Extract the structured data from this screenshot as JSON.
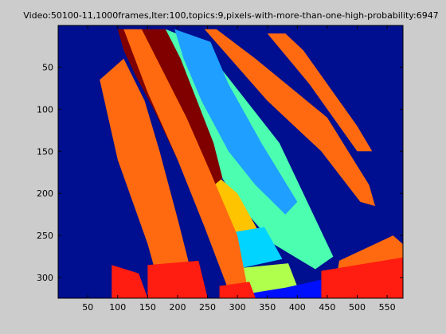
{
  "chart_data": {
    "type": "heatmap",
    "title": "Video:50100-11,1000frames,Iter:100,topics:9,pixels-with-more-than-one-high-probability:6947",
    "xlabel": "",
    "ylabel": "",
    "xlim": [
      0.5,
      576.5
    ],
    "ylim": [
      0.5,
      324.5
    ],
    "y_reversed": true,
    "grid": false,
    "legend": "none",
    "xticks": [
      50,
      100,
      150,
      200,
      250,
      300,
      350,
      400,
      450,
      500,
      550
    ],
    "yticks": [
      50,
      100,
      150,
      200,
      250,
      300
    ],
    "colors": {
      "background": "#000f8f",
      "maroon": "#800000",
      "aquamarine": "#4cffb0",
      "sky": "#1f9fff",
      "orange": "#ff6a10",
      "red": "#ff1c10",
      "amber": "#ffc400",
      "cyan": "#00d4ff",
      "lime": "#b0ff4c",
      "blue": "#0010ff"
    },
    "regions": [
      {
        "topic": "aquamarine",
        "points": [
          [
            180,
            5
          ],
          [
            240,
            22
          ],
          [
            370,
            140
          ],
          [
            460,
            275
          ],
          [
            430,
            290
          ],
          [
            360,
            260
          ],
          [
            300,
            210
          ],
          [
            255,
            160
          ],
          [
            215,
            90
          ],
          [
            185,
            40
          ]
        ]
      },
      {
        "topic": "sky",
        "points": [
          [
            195,
            5
          ],
          [
            255,
            20
          ],
          [
            285,
            70
          ],
          [
            340,
            140
          ],
          [
            400,
            210
          ],
          [
            380,
            225
          ],
          [
            330,
            190
          ],
          [
            285,
            150
          ],
          [
            240,
            90
          ],
          [
            210,
            40
          ]
        ]
      },
      {
        "topic": "amber",
        "points": [
          [
            235,
            160
          ],
          [
            300,
            200
          ],
          [
            335,
            245
          ],
          [
            275,
            260
          ],
          [
            255,
            230
          ],
          [
            240,
            200
          ]
        ]
      },
      {
        "topic": "cyan",
        "points": [
          [
            260,
            250
          ],
          [
            345,
            240
          ],
          [
            375,
            278
          ],
          [
            285,
            292
          ]
        ]
      },
      {
        "topic": "lime",
        "points": [
          [
            285,
            290
          ],
          [
            385,
            283
          ],
          [
            405,
            320
          ],
          [
            300,
            325
          ]
        ]
      },
      {
        "topic": "blue",
        "points": [
          [
            310,
            320
          ],
          [
            380,
            312
          ],
          [
            455,
            300
          ],
          [
            470,
            324
          ],
          [
            320,
            324
          ]
        ]
      },
      {
        "topic": "maroon",
        "points": [
          [
            100,
            5
          ],
          [
            180,
            5
          ],
          [
            205,
            40
          ],
          [
            260,
            140
          ],
          [
            275,
            182
          ],
          [
            235,
            205
          ],
          [
            200,
            160
          ],
          [
            160,
            100
          ],
          [
            130,
            60
          ],
          [
            110,
            30
          ]
        ]
      },
      {
        "topic": "orange",
        "points": [
          [
            70,
            65
          ],
          [
            110,
            40
          ],
          [
            145,
            90
          ],
          [
            170,
            150
          ],
          [
            200,
            230
          ],
          [
            225,
            300
          ],
          [
            225,
            324
          ],
          [
            175,
            324
          ],
          [
            150,
            260
          ],
          [
            100,
            160
          ]
        ]
      },
      {
        "topic": "orange",
        "points": [
          [
            110,
            5
          ],
          [
            140,
            5
          ],
          [
            215,
            110
          ],
          [
            255,
            175
          ],
          [
            300,
            250
          ],
          [
            320,
            324
          ],
          [
            290,
            324
          ],
          [
            245,
            240
          ],
          [
            200,
            160
          ],
          [
            150,
            80
          ]
        ]
      },
      {
        "topic": "orange",
        "points": [
          [
            245,
            5
          ],
          [
            265,
            5
          ],
          [
            330,
            40
          ],
          [
            450,
            110
          ],
          [
            520,
            190
          ],
          [
            530,
            215
          ],
          [
            505,
            210
          ],
          [
            440,
            150
          ],
          [
            350,
            90
          ]
        ]
      },
      {
        "topic": "orange",
        "points": [
          [
            350,
            10
          ],
          [
            380,
            10
          ],
          [
            410,
            30
          ],
          [
            500,
            120
          ],
          [
            525,
            150
          ],
          [
            500,
            150
          ],
          [
            420,
            70
          ]
        ]
      },
      {
        "topic": "orange",
        "points": [
          [
            470,
            280
          ],
          [
            560,
            250
          ],
          [
            576,
            260
          ],
          [
            576,
            324
          ],
          [
            460,
            324
          ]
        ]
      },
      {
        "topic": "red",
        "points": [
          [
            270,
            310
          ],
          [
            320,
            305
          ],
          [
            330,
            324
          ],
          [
            270,
            324
          ]
        ]
      },
      {
        "topic": "red",
        "points": [
          [
            440,
            292
          ],
          [
            576,
            276
          ],
          [
            576,
            324
          ],
          [
            440,
            324
          ]
        ]
      },
      {
        "topic": "red",
        "points": [
          [
            150,
            285
          ],
          [
            235,
            280
          ],
          [
            250,
            324
          ],
          [
            150,
            324
          ]
        ]
      },
      {
        "topic": "red",
        "points": [
          [
            90,
            285
          ],
          [
            135,
            295
          ],
          [
            150,
            324
          ],
          [
            90,
            324
          ]
        ]
      }
    ]
  }
}
